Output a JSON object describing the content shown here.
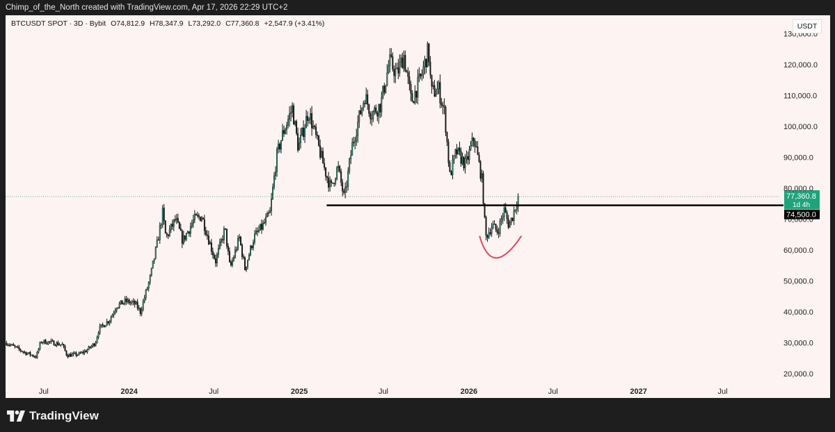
{
  "header": {
    "attribution": "Chimp_of_the_North created with TradingView.com, Apr 17, 2026 22:29 UTC+2"
  },
  "legend": {
    "symbol": "BTCUSDT SPOT · 3D · Bybit",
    "open": "O74,812.9",
    "high": "H78,347.9",
    "low": "L73,292.0",
    "close": "C77,360.8",
    "change": "+2,547.9 (+3.41%)"
  },
  "currency": "USDT",
  "brand": "TradingView",
  "colors": {
    "background": "#fdf3f2",
    "up": "#1e8c6e",
    "down": "#111111",
    "support_line": "#000000",
    "arc": "#e04556",
    "price_tag": "#1fa37a",
    "level_tag": "#000000"
  },
  "chart_data": {
    "type": "candlestick",
    "title": "BTCUSDT SPOT · 3D · Bybit",
    "ylim": [
      16000,
      136000
    ],
    "xlim": [
      "2023-04-10",
      "2027-10-31"
    ],
    "y_ticks": [
      "20,000.0",
      "30,000.0",
      "40,000.0",
      "50,000.0",
      "60,000.0",
      "70,000.0",
      "80,000.0",
      "90,000.0",
      "100,000.0",
      "110,000.0",
      "120,000.0",
      "130,000.0"
    ],
    "y_tick_values": [
      20000,
      30000,
      40000,
      50000,
      60000,
      70000,
      80000,
      90000,
      100000,
      110000,
      120000,
      130000
    ],
    "x_ticks": [
      {
        "label": "Jul",
        "date": "2023-07-01",
        "bold": false
      },
      {
        "label": "2024",
        "date": "2024-01-01",
        "bold": true
      },
      {
        "label": "Jul",
        "date": "2024-07-01",
        "bold": false
      },
      {
        "label": "2025",
        "date": "2025-01-01",
        "bold": true
      },
      {
        "label": "Jul",
        "date": "2025-07-01",
        "bold": false
      },
      {
        "label": "2026",
        "date": "2026-01-01",
        "bold": true
      },
      {
        "label": "Jul",
        "date": "2026-07-01",
        "bold": false
      },
      {
        "label": "2027",
        "date": "2027-01-01",
        "bold": true
      },
      {
        "label": "Jul",
        "date": "2027-07-01",
        "bold": false
      }
    ],
    "candle_interval_days": 3,
    "close_path": [
      [
        "2023-04-12",
        30000
      ],
      [
        "2023-05-01",
        28500
      ],
      [
        "2023-05-20",
        27000
      ],
      [
        "2023-06-15",
        25500
      ],
      [
        "2023-06-25",
        30500
      ],
      [
        "2023-07-15",
        30200
      ],
      [
        "2023-08-10",
        29400
      ],
      [
        "2023-08-20",
        26000
      ],
      [
        "2023-09-15",
        26300
      ],
      [
        "2023-10-01",
        27500
      ],
      [
        "2023-10-20",
        30000
      ],
      [
        "2023-10-28",
        34500
      ],
      [
        "2023-11-20",
        37500
      ],
      [
        "2023-12-05",
        42000
      ],
      [
        "2023-12-25",
        43500
      ],
      [
        "2024-01-15",
        42500
      ],
      [
        "2024-01-25",
        40000
      ],
      [
        "2024-02-15",
        51000
      ],
      [
        "2024-03-01",
        62000
      ],
      [
        "2024-03-13",
        72000
      ],
      [
        "2024-03-20",
        64000
      ],
      [
        "2024-04-10",
        70000
      ],
      [
        "2024-04-25",
        63000
      ],
      [
        "2024-05-20",
        70000
      ],
      [
        "2024-06-05",
        71000
      ],
      [
        "2024-06-25",
        61000
      ],
      [
        "2024-07-05",
        56500
      ],
      [
        "2024-07-25",
        67000
      ],
      [
        "2024-08-05",
        54000
      ],
      [
        "2024-08-25",
        64000
      ],
      [
        "2024-09-06",
        54000
      ],
      [
        "2024-09-25",
        64000
      ],
      [
        "2024-10-15",
        68000
      ],
      [
        "2024-10-30",
        72000
      ],
      [
        "2024-11-13",
        90000
      ],
      [
        "2024-11-25",
        97000
      ],
      [
        "2024-12-17",
        106000
      ],
      [
        "2024-12-30",
        93000
      ],
      [
        "2025-01-21",
        105000
      ],
      [
        "2025-02-03",
        98000
      ],
      [
        "2025-02-25",
        86000
      ],
      [
        "2025-03-10",
        80000
      ],
      [
        "2025-03-25",
        87000
      ],
      [
        "2025-04-08",
        76500
      ],
      [
        "2025-04-25",
        94000
      ],
      [
        "2025-05-10",
        103000
      ],
      [
        "2025-05-22",
        110000
      ],
      [
        "2025-06-05",
        104000
      ],
      [
        "2025-06-25",
        107000
      ],
      [
        "2025-07-14",
        121000
      ],
      [
        "2025-07-30",
        117000
      ],
      [
        "2025-08-14",
        123000
      ],
      [
        "2025-08-30",
        108000
      ],
      [
        "2025-09-20",
        116000
      ],
      [
        "2025-10-06",
        125000
      ],
      [
        "2025-10-12",
        111000
      ],
      [
        "2025-10-28",
        112000
      ],
      [
        "2025-11-10",
        104000
      ],
      [
        "2025-11-21",
        84000
      ],
      [
        "2025-12-05",
        92000
      ],
      [
        "2025-12-25",
        87500
      ],
      [
        "2026-01-12",
        96500
      ],
      [
        "2026-01-30",
        82000
      ],
      [
        "2026-02-06",
        64000
      ],
      [
        "2026-02-20",
        68000
      ],
      [
        "2026-03-04",
        66000
      ],
      [
        "2026-03-18",
        73000
      ],
      [
        "2026-03-28",
        68000
      ],
      [
        "2026-04-05",
        71000
      ],
      [
        "2026-04-17",
        77360.8
      ]
    ],
    "horizontal_level": {
      "value": 74500,
      "start": "2025-03-01",
      "label": "74,500.0"
    },
    "last_price": {
      "value": 77360.8,
      "label": "77,360.8",
      "countdown": "1d 4h"
    },
    "annotation": {
      "type": "arc",
      "start": [
        "2026-01-24",
        64600
      ],
      "mid": [
        "2026-03-01",
        57500
      ],
      "end": [
        "2026-04-24",
        64600
      ]
    }
  }
}
